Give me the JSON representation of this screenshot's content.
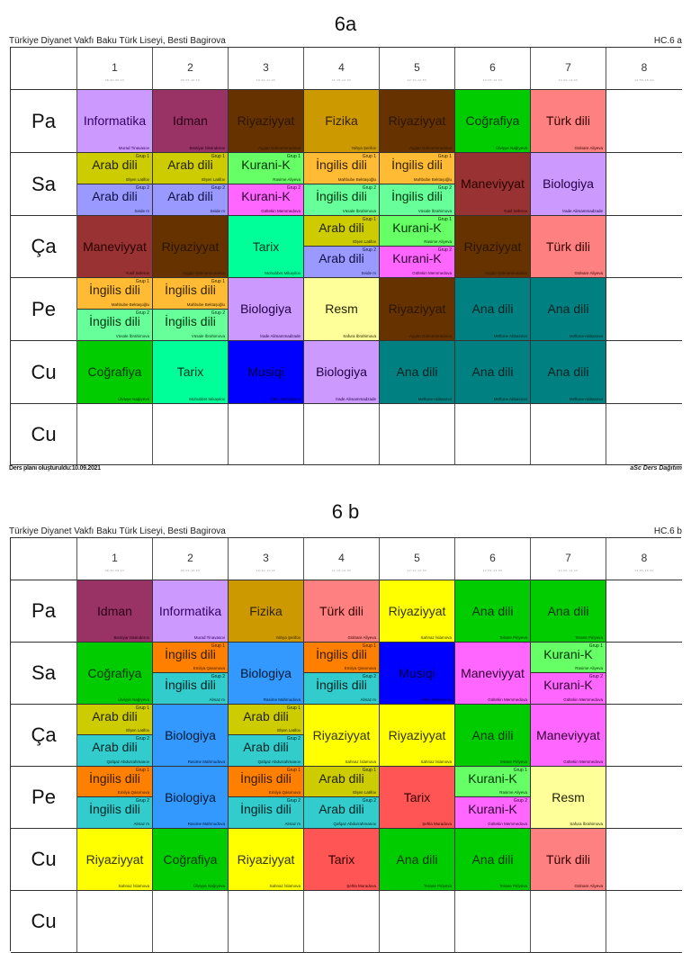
{
  "colors": {
    "informatika": "#cc99ff",
    "idman": "#993366",
    "riyaziyyat_6a": "#663300",
    "fizika": "#cc9900",
    "cografiya": "#00cc00",
    "turk_dili": "#ff8080",
    "arab_g1": "#cccc00",
    "arab_g2_6a": "#9999ff",
    "kurani_g1": "#66ff66",
    "kurani_g2": "#ff66ff",
    "ingilis_g1_6a": "#ffbb33",
    "ingilis_g2_6a": "#66ff99",
    "maneviyyat_6a": "#993333",
    "biologiya_6a": "#cc99ff",
    "tarix_6a": "#00ff99",
    "resm": "#ffff99",
    "ana_dili_6a": "#008080",
    "musiqi": "#0000ff",
    "riyaziyyat_6b": "#ffff00",
    "ana_dili_6b": "#00cc00",
    "biologiya_6b": "#3399ff",
    "ingilis_g1_6b": "#ff8000",
    "ingilis_g2_6b": "#33cccc",
    "arab_g2_6b": "#33cccc",
    "maneviyyat_6b": "#ff66ff",
    "tarix_6b": "#ff5555"
  },
  "timetables": [
    {
      "title": "6a",
      "school": "Türkiye Diyanet Vakfı Baku Türk Liseyi, Besti Bagirova",
      "code": "HC.6 a",
      "periods": [
        {
          "num": "1",
          "time": "08:30-09:15"
        },
        {
          "num": "2",
          "time": "09:25-10:10"
        },
        {
          "num": "3",
          "time": "10:20-11:05"
        },
        {
          "num": "4",
          "time": "11:15-12:00"
        },
        {
          "num": "5",
          "time": "12:10-12:55"
        },
        {
          "num": "6",
          "time": "13:05-13:50"
        },
        {
          "num": "7",
          "time": "14:00-14:45"
        },
        {
          "num": "8",
          "time": "14:55-15:40"
        }
      ],
      "days": [
        "Pa",
        "Sa",
        "Ça",
        "Pe",
        "Cu",
        "Cu"
      ],
      "footer_left": "Ders planı oluşturuldu:10.09.2021",
      "footer_right": "aSc Ders Dağıtım"
    },
    {
      "title": "6 b",
      "school": "Türkiye Diyanet Vakfı Baku Türk Liseyi, Besti Bagirova",
      "code": "HC.6 b",
      "periods": [
        {
          "num": "1",
          "time": "08:30-09:15"
        },
        {
          "num": "2",
          "time": "09:25-10:10"
        },
        {
          "num": "3",
          "time": "10:20-11:05"
        },
        {
          "num": "4",
          "time": "11:15-12:00"
        },
        {
          "num": "5",
          "time": "12:10-12:55"
        },
        {
          "num": "6",
          "time": "13:05-13:50"
        },
        {
          "num": "7",
          "time": "14:00-14:45"
        },
        {
          "num": "8",
          "time": "14:55-15:40"
        }
      ],
      "days": [
        "Pa",
        "Sa",
        "Ça",
        "Pe",
        "Cu",
        "Cu"
      ]
    }
  ],
  "lessons_6a": {
    "pa": [
      {
        "subject": "Informatika",
        "teacher": "Murad Tinavasov"
      },
      {
        "subject": "Idman",
        "teacher": "Bextiyar İskenderov"
      },
      {
        "subject": "Riyaziyyat",
        "teacher": "Aygün Gülmemmedova"
      },
      {
        "subject": "Fizika",
        "teacher": "Yahya Şerifov"
      },
      {
        "subject": "Riyaziyyat",
        "teacher": "Aygün Gülmemmedova"
      },
      {
        "subject": "Coğrafiya",
        "teacher": "Ülviyye Nağıyeva"
      },
      {
        "subject": "Türk dili",
        "teacher": "Gülnare Aliyeva"
      }
    ],
    "sa": [
      {
        "g1": {
          "subject": "Arab dili",
          "teacher": "Elşen Latifov",
          "group": "Grup 1"
        },
        "g2": {
          "subject": "Arab dili",
          "teacher": "Seide m",
          "group": "Grup 2"
        }
      },
      {
        "g1": {
          "subject": "Arab dili",
          "teacher": "Elşen Latifov",
          "group": "Grup 1"
        },
        "g2": {
          "subject": "Arab dili",
          "teacher": "Seide m",
          "group": "Grup 2"
        }
      },
      {
        "g1": {
          "subject": "Kurani-K",
          "teacher": "Rasime Aliyeva",
          "group": "Grup 1"
        },
        "g2": {
          "subject": "Kurani-K",
          "teacher": "Gültekin Memmedova",
          "group": "Grup 2"
        }
      },
      {
        "g1": {
          "subject": "İngilis dili",
          "teacher": "Mahbube Bektaşoğlu",
          "group": "Grup 1"
        },
        "g2": {
          "subject": "İngilis dili",
          "teacher": "Vüsale İbrahimova",
          "group": "Grup 2"
        }
      },
      {
        "g1": {
          "subject": "İngilis dili",
          "teacher": "Mahbube Bektaşoğlu",
          "group": "Grup 1"
        },
        "g2": {
          "subject": "İngilis dili",
          "teacher": "Vüsale İbrahimova",
          "group": "Grup 2"
        }
      },
      {
        "subject": "Maneviyyat",
        "teacher": "Yusif Seferov"
      },
      {
        "subject": "Biologiya",
        "teacher": "İrade Alimammadzade"
      }
    ],
    "ca": [
      {
        "subject": "Maneviyyat",
        "teacher": "Yusif Seferov"
      },
      {
        "subject": "Riyaziyyat",
        "teacher": "Aygün Gülmemmedova"
      },
      {
        "subject": "Tarix",
        "teacher": "Mohubbet Mikayilov"
      },
      {
        "g1": {
          "subject": "Arab dili",
          "teacher": "Elşen Latifov",
          "group": "Grup 1"
        },
        "g2": {
          "subject": "Arab dili",
          "teacher": "Seide m",
          "group": "Grup 2"
        }
      },
      {
        "g1": {
          "subject": "Kurani-K",
          "teacher": "Rasime Aliyeva",
          "group": "Grup 1"
        },
        "g2": {
          "subject": "Kurani-K",
          "teacher": "Gültekin Memmedova",
          "group": "Grup 2"
        }
      },
      {
        "subject": "Riyaziyyat",
        "teacher": "Aygün Gülmemmedova"
      },
      {
        "subject": "Türk dili",
        "teacher": "Gülnare Aliyeva"
      }
    ],
    "pe": [
      {
        "g1": {
          "subject": "İngilis dili",
          "teacher": "Mahbube Bektaşoğlu",
          "group": "Grup 1"
        },
        "g2": {
          "subject": "İngilis dili",
          "teacher": "Vüsale İbrahimova",
          "group": "Grup 2"
        }
      },
      {
        "g1": {
          "subject": "İngilis dili",
          "teacher": "Mahbube Bektaşoğlu",
          "group": "Grup 1"
        },
        "g2": {
          "subject": "İngilis dili",
          "teacher": "Vüsale İbrahimova",
          "group": "Grup 2"
        }
      },
      {
        "subject": "Biologiya",
        "teacher": "İrade Alimammadzade"
      },
      {
        "subject": "Resm",
        "teacher": "Safura İbrahimova"
      },
      {
        "subject": "Riyaziyyat",
        "teacher": "Aygün Gülmemmedova"
      },
      {
        "subject": "Ana dili",
        "teacher": "Meftune Abbasova"
      },
      {
        "subject": "Ana dili",
        "teacher": "Meftune Abbasova"
      }
    ],
    "cu": [
      {
        "subject": "Coğrafiya",
        "teacher": "Ülviyye Nağıyeva"
      },
      {
        "subject": "Tarix",
        "teacher": "Mohubbet Mikayilov"
      },
      {
        "subject": "Musiqi",
        "teacher": "Ülker Mehdiyeva"
      },
      {
        "subject": "Biologiya",
        "teacher": "İrade Alimammadzade"
      },
      {
        "subject": "Ana dili",
        "teacher": "Meftune Abbasova"
      },
      {
        "subject": "Ana dili",
        "teacher": "Meftune Abbasova"
      },
      {
        "subject": "Ana dili",
        "teacher": "Meftune Abbasova"
      }
    ]
  },
  "lessons_6b": {
    "pa": [
      {
        "subject": "Idman",
        "teacher": "Bextiyar İskenderov"
      },
      {
        "subject": "Informatika",
        "teacher": "Murad Tinavasov"
      },
      {
        "subject": "Fizika",
        "teacher": "Yahya Şerifov"
      },
      {
        "subject": "Türk dili",
        "teacher": "Gülnare Aliyeva"
      },
      {
        "subject": "Riyaziyyat",
        "teacher": "Sahnaz İslamova"
      },
      {
        "subject": "Ana dili",
        "teacher": "Terane Piriyeva"
      },
      {
        "subject": "Ana dili",
        "teacher": "Terane Piriyeva"
      }
    ],
    "sa": [
      {
        "subject": "Coğrafiya",
        "teacher": "Ülviyye Nağıyeva"
      },
      {
        "g1": {
          "subject": "İngilis dili",
          "teacher": "Emilya Qasımova",
          "group": "Grup 1"
        },
        "g2": {
          "subject": "İngilis dili",
          "teacher": "Almaz m",
          "group": "Grup 2"
        }
      },
      {
        "subject": "Biologiya",
        "teacher": "Rasime Mahmudova"
      },
      {
        "g1": {
          "subject": "İngilis dili",
          "teacher": "Emilya Qasımova",
          "group": "Grup 1"
        },
        "g2": {
          "subject": "İngilis dili",
          "teacher": "Almaz m",
          "group": "Grup 2"
        }
      },
      {
        "subject": "Musiqi",
        "teacher": "Ülker Mehdiyeva"
      },
      {
        "subject": "Maneviyyat",
        "teacher": "Gültekin Memmedova"
      },
      {
        "g1": {
          "subject": "Kurani-K",
          "teacher": "Rasime Aliyeva",
          "group": "Grup 1"
        },
        "g2": {
          "subject": "Kurani-K",
          "teacher": "Gültekin Memmedova",
          "group": "Grup 2"
        }
      }
    ],
    "ca": [
      {
        "g1": {
          "subject": "Arab dili",
          "teacher": "Elşen Latifov",
          "group": "Grup 1"
        },
        "g2": {
          "subject": "Arab dili",
          "teacher": "Qafqaz Abdurrahmanov",
          "group": "Grup 2"
        }
      },
      {
        "subject": "Biologiya",
        "teacher": "Rasime Mahmudova"
      },
      {
        "g1": {
          "subject": "Arab dili",
          "teacher": "Elşen Latifov",
          "group": "Grup 1"
        },
        "g2": {
          "subject": "Arab dili",
          "teacher": "Qafqaz Abdurrahmanov",
          "group": "Grup 2"
        }
      },
      {
        "subject": "Riyaziyyat",
        "teacher": "Sahnaz İslamova"
      },
      {
        "subject": "Riyaziyyat",
        "teacher": "Sahnaz İslamova"
      },
      {
        "subject": "Ana dili",
        "teacher": "Terane Piriyeva"
      },
      {
        "subject": "Maneviyyat",
        "teacher": "Gültekin Memmedova"
      }
    ],
    "pe": [
      {
        "g1": {
          "subject": "İngilis dili",
          "teacher": "Emilya Qasımova",
          "group": "Grup 1"
        },
        "g2": {
          "subject": "İngilis dili",
          "teacher": "Almaz m",
          "group": "Grup 2"
        }
      },
      {
        "subject": "Biologiya",
        "teacher": "Rasime Mahmudova"
      },
      {
        "g1": {
          "subject": "İngilis dili",
          "teacher": "Emilya Qasımova",
          "group": "Grup 1"
        },
        "g2": {
          "subject": "İngilis dili",
          "teacher": "Almaz m",
          "group": "Grup 2"
        }
      },
      {
        "g1": {
          "subject": "Arab dili",
          "teacher": "Elşen Latifov",
          "group": "Grup 1"
        },
        "g2": {
          "subject": "Arab dili",
          "teacher": "Qafqaz Abdurrahmanov",
          "group": "Grup 2"
        }
      },
      {
        "subject": "Tarix",
        "teacher": "Şehla Muradova"
      },
      {
        "g1": {
          "subject": "Kurani-K",
          "teacher": "Rasime Aliyeva",
          "group": "Grup 1"
        },
        "g2": {
          "subject": "Kurani-K",
          "teacher": "Gültekin Memmedova",
          "group": "Grup 2"
        }
      },
      {
        "subject": "Resm",
        "teacher": "Safura İbrahimova"
      }
    ],
    "cu": [
      {
        "subject": "Riyaziyyat",
        "teacher": "Sahnaz İslamova"
      },
      {
        "subject": "Coğrafiya",
        "teacher": "Ülviyye Nağıyeva"
      },
      {
        "subject": "Riyaziyyat",
        "teacher": "Sahnaz İslamova"
      },
      {
        "subject": "Tarix",
        "teacher": "Şehla Muradova"
      },
      {
        "subject": "Ana dili",
        "teacher": "Terane Piriyeva"
      },
      {
        "subject": "Ana dili",
        "teacher": "Terane Piriyeva"
      },
      {
        "subject": "Türk dili",
        "teacher": "Gülnare Aliyeva"
      }
    ]
  }
}
